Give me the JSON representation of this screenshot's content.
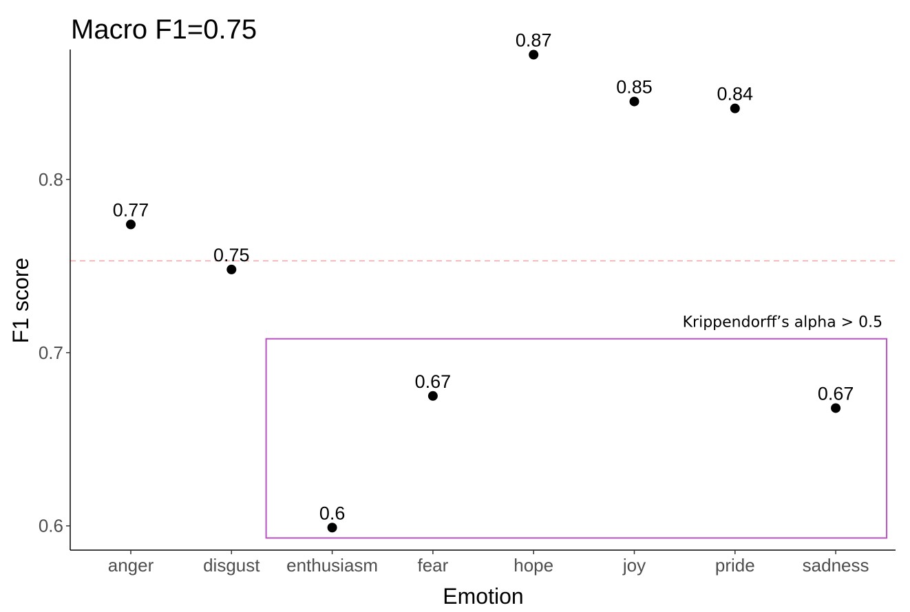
{
  "chart_data": {
    "type": "scatter",
    "title": "Macro F1=0.75",
    "xlabel": "Emotion",
    "ylabel": "F1 score",
    "categories": [
      "anger",
      "disgust",
      "enthusiasm",
      "fear",
      "hope",
      "joy",
      "pride",
      "sadness"
    ],
    "values": [
      0.774,
      0.748,
      0.599,
      0.675,
      0.872,
      0.845,
      0.841,
      0.668
    ],
    "labels": [
      "0.77",
      "0.75",
      "0.6",
      "0.67",
      "0.87",
      "0.85",
      "0.84",
      "0.67"
    ],
    "ylim": [
      0.586,
      0.875
    ],
    "yticks": [
      0.6,
      0.7,
      0.8
    ],
    "ytick_labels": [
      "0.6",
      "0.7",
      "0.8"
    ],
    "reference_line": {
      "value": 0.753,
      "style": "dashed",
      "color": "#f4a3a3"
    },
    "highlight_box": {
      "label": "Krippendorff’s alpha > 0.5",
      "categories": [
        "enthusiasm",
        "fear",
        "hope",
        "joy",
        "pride",
        "sadness"
      ],
      "color": "#b84fc1"
    },
    "point_color": "#000000",
    "grid": false,
    "legend": "none"
  }
}
